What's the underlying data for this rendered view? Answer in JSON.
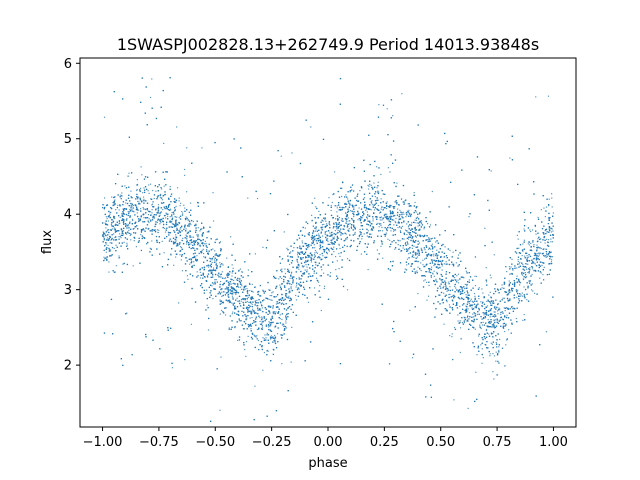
{
  "chart_data": {
    "type": "scatter",
    "title": "1SWASPJ002828.13+262749.9 Period 14013.93848s",
    "xlabel": "phase",
    "ylabel": "flux",
    "xlim": [
      -1.1,
      1.1
    ],
    "ylim": [
      1.18,
      6.07
    ],
    "xticks": [
      -1.0,
      -0.75,
      -0.5,
      -0.25,
      0.0,
      0.25,
      0.5,
      0.75,
      1.0
    ],
    "xtick_labels": [
      "−1.00",
      "−0.75",
      "−0.50",
      "−0.25",
      "0.00",
      "0.25",
      "0.50",
      "0.75",
      "1.00"
    ],
    "yticks": [
      2,
      3,
      4,
      5,
      6
    ],
    "ytick_labels": [
      "2",
      "3",
      "4",
      "5",
      "6"
    ],
    "grid": false,
    "marker_color": "#1f77b4",
    "series": [
      {
        "phase_range": [
          -1.0,
          1.0
        ],
        "trend_x": [
          -1.0,
          -0.9,
          -0.8,
          -0.7,
          -0.6,
          -0.5,
          -0.4,
          -0.3,
          -0.25,
          -0.2,
          -0.1,
          0.0,
          0.1,
          0.2,
          0.3,
          0.4,
          0.5,
          0.6,
          0.7,
          0.75,
          0.8,
          0.9,
          1.0
        ],
        "trend_y": [
          3.7,
          3.9,
          4.0,
          3.95,
          3.6,
          3.2,
          2.85,
          2.6,
          2.55,
          2.9,
          3.4,
          3.7,
          3.9,
          4.0,
          3.95,
          3.6,
          3.2,
          2.85,
          2.6,
          2.55,
          2.9,
          3.4,
          3.7
        ]
      }
    ]
  }
}
